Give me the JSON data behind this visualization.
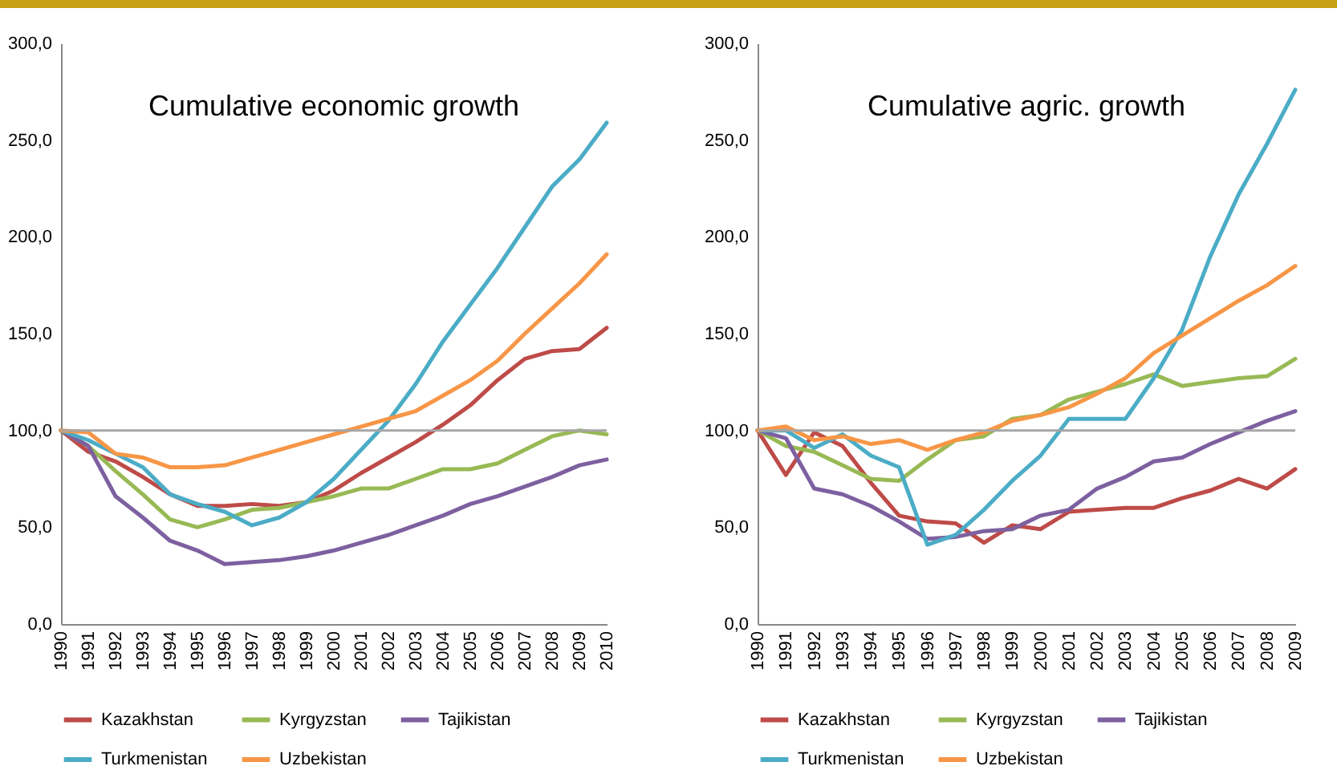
{
  "chart_data": [
    {
      "type": "line",
      "title": "Cumulative economic growth",
      "categories": [
        "1990",
        "1991",
        "1992",
        "1993",
        "1994",
        "1995",
        "1996",
        "1997",
        "1998",
        "1999",
        "2000",
        "2001",
        "2002",
        "2003",
        "2004",
        "2005",
        "2006",
        "2007",
        "2008",
        "2009",
        "2010"
      ],
      "series": [
        {
          "name": "Kazakhstan",
          "color": "#be4b48",
          "values": [
            100,
            89,
            84,
            76,
            67,
            61,
            61,
            62,
            61,
            63,
            69,
            78,
            86,
            94,
            103,
            113,
            126,
            137,
            141,
            142,
            153
          ]
        },
        {
          "name": "Kyrgyzstan",
          "color": "#98b954",
          "values": [
            100,
            92,
            79,
            67,
            54,
            50,
            54,
            59,
            60,
            63,
            66,
            70,
            70,
            75,
            80,
            80,
            83,
            90,
            97,
            100,
            98
          ]
        },
        {
          "name": "Tajikistan",
          "color": "#7d60a0",
          "values": [
            100,
            92,
            66,
            55,
            43,
            38,
            31,
            32,
            33,
            35,
            38,
            42,
            46,
            51,
            56,
            62,
            66,
            71,
            76,
            82,
            85
          ]
        },
        {
          "name": "Turkmenistan",
          "color": "#4bacc6",
          "values": [
            100,
            95,
            88,
            81,
            67,
            62,
            58,
            51,
            55,
            63,
            75,
            90,
            105,
            124,
            146,
            165,
            184,
            205,
            226,
            240,
            259
          ]
        },
        {
          "name": "Uzbekistan",
          "color": "#f79646",
          "values": [
            100,
            99,
            88,
            86,
            81,
            81,
            82,
            86,
            90,
            94,
            98,
            102,
            106,
            110,
            118,
            126,
            136,
            150,
            163,
            176,
            191
          ]
        }
      ],
      "ylim": [
        0,
        300
      ],
      "yticks": [
        {
          "value": 0,
          "label": "0,0"
        },
        {
          "value": 50,
          "label": "50,0"
        },
        {
          "value": 100,
          "label": "100,0"
        },
        {
          "value": 150,
          "label": "150,0"
        },
        {
          "value": 200,
          "label": "200,0"
        },
        {
          "value": 250,
          "label": "250,0"
        },
        {
          "value": 300,
          "label": "300,0"
        }
      ],
      "ref_lines": [
        {
          "axis": "y",
          "value": 100,
          "color": "#a6a6a6"
        }
      ],
      "legend": "bottom"
    },
    {
      "type": "line",
      "title": "Cumulative agric. growth",
      "categories": [
        "1990",
        "1991",
        "1992",
        "1993",
        "1994",
        "1995",
        "1996",
        "1997",
        "1998",
        "1999",
        "2000",
        "2001",
        "2002",
        "2003",
        "2004",
        "2005",
        "2006",
        "2007",
        "2008",
        "2009"
      ],
      "series": [
        {
          "name": "Kazakhstan",
          "color": "#be4b48",
          "values": [
            100,
            77,
            99,
            92,
            73,
            56,
            53,
            52,
            42,
            51,
            49,
            58,
            59,
            60,
            60,
            65,
            69,
            75,
            70,
            80
          ]
        },
        {
          "name": "Kyrgyzstan",
          "color": "#98b954",
          "values": [
            100,
            92,
            89,
            82,
            75,
            74,
            85,
            95,
            97,
            106,
            108,
            116,
            120,
            124,
            129,
            123,
            125,
            127,
            128,
            137
          ]
        },
        {
          "name": "Tajikistan",
          "color": "#7d60a0",
          "values": [
            100,
            96,
            70,
            67,
            61,
            53,
            44,
            45,
            48,
            49,
            56,
            59,
            70,
            76,
            84,
            86,
            93,
            99,
            105,
            110
          ]
        },
        {
          "name": "Turkmenistan",
          "color": "#4bacc6",
          "values": [
            100,
            100,
            91,
            98,
            87,
            81,
            41,
            46,
            59,
            74,
            87,
            106,
            106,
            106,
            127,
            152,
            190,
            222,
            248,
            276
          ]
        },
        {
          "name": "Uzbekistan",
          "color": "#f79646",
          "values": [
            100,
            102,
            95,
            97,
            93,
            95,
            90,
            95,
            99,
            105,
            108,
            112,
            119,
            127,
            140,
            149,
            158,
            167,
            175,
            185
          ]
        }
      ],
      "ylim": [
        0,
        300
      ],
      "yticks": [
        {
          "value": 0,
          "label": "0,0"
        },
        {
          "value": 50,
          "label": "50,0"
        },
        {
          "value": 100,
          "label": "100,0"
        },
        {
          "value": 150,
          "label": "150,0"
        },
        {
          "value": 200,
          "label": "200,0"
        },
        {
          "value": 250,
          "label": "250,0"
        },
        {
          "value": 300,
          "label": "300,0"
        }
      ],
      "ref_lines": [
        {
          "axis": "y",
          "value": 100,
          "color": "#a6a6a6"
        }
      ],
      "legend": "bottom"
    }
  ]
}
